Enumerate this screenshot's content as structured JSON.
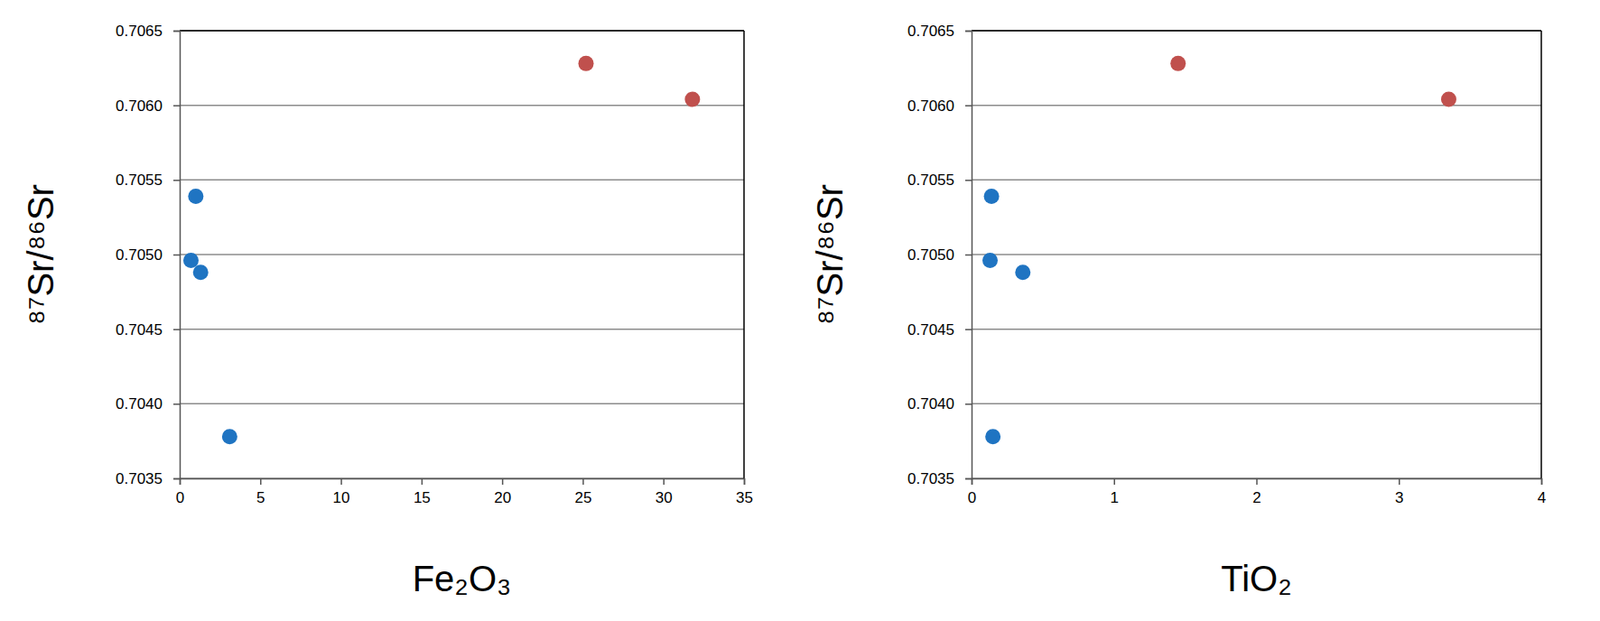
{
  "chart_data": [
    {
      "type": "scatter",
      "x_label": "Fe₂O₃",
      "y_label": "⁸⁷Sr/⁸⁶Sr",
      "xlim": [
        0,
        35
      ],
      "xticks": [
        0,
        5,
        10,
        15,
        20,
        25,
        30,
        35
      ],
      "ylim": [
        0.7035,
        0.7065
      ],
      "yticks": [
        0.7035,
        {
          "value": 0.704,
          "label": "0.7040"
        },
        0.7045,
        {
          "value": 0.705,
          "label": "0.7050"
        },
        0.7055,
        {
          "value": 0.706,
          "label": "0.7060"
        },
        0.7065
      ],
      "grid": true,
      "series": [
        {
          "color": "#1f74c2",
          "marker": "circle",
          "x": [
            1.0,
            0.7,
            1.3,
            3.1
          ],
          "values": [
            0.70539,
            0.70496,
            0.70488,
            0.70378
          ]
        },
        {
          "color": "#c0504d",
          "marker": "circle",
          "x": [
            25.2,
            31.8
          ],
          "values": [
            0.70628,
            0.70604
          ]
        }
      ]
    },
    {
      "type": "scatter",
      "x_label": "TiO₂",
      "y_label": "⁸⁷Sr/⁸⁶Sr",
      "xlim": [
        0,
        4
      ],
      "xticks": [
        0,
        1,
        2,
        3,
        4
      ],
      "ylim": [
        0.7035,
        0.7065
      ],
      "yticks": [
        0.7035,
        {
          "value": 0.704,
          "label": "0.7040"
        },
        0.7045,
        {
          "value": 0.705,
          "label": "0.7050"
        },
        0.7055,
        {
          "value": 0.706,
          "label": "0.7060"
        },
        0.7065
      ],
      "grid": true,
      "series": [
        {
          "color": "#1f74c2",
          "marker": "circle",
          "x": [
            0.14,
            0.13,
            0.36,
            0.15
          ],
          "values": [
            0.70539,
            0.70496,
            0.70488,
            0.70378
          ]
        },
        {
          "color": "#c0504d",
          "marker": "circle",
          "x": [
            1.45,
            3.35
          ],
          "values": [
            0.70628,
            0.70604
          ]
        }
      ]
    }
  ]
}
